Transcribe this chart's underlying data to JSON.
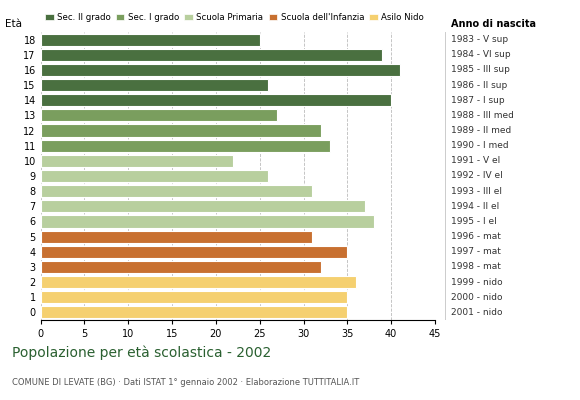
{
  "ages": [
    18,
    17,
    16,
    15,
    14,
    13,
    12,
    11,
    10,
    9,
    8,
    7,
    6,
    5,
    4,
    3,
    2,
    1,
    0
  ],
  "values": [
    25,
    39,
    41,
    26,
    40,
    27,
    32,
    33,
    22,
    26,
    31,
    37,
    38,
    31,
    35,
    32,
    36,
    35,
    35
  ],
  "anno_nascita": [
    "1983 - V sup",
    "1984 - VI sup",
    "1985 - III sup",
    "1986 - II sup",
    "1987 - I sup",
    "1988 - III med",
    "1989 - II med",
    "1990 - I med",
    "1991 - V el",
    "1992 - IV el",
    "1993 - III el",
    "1994 - II el",
    "1995 - I el",
    "1996 - mat",
    "1997 - mat",
    "1998 - mat",
    "1999 - nido",
    "2000 - nido",
    "2001 - nido"
  ],
  "categories": {
    "Sec. II grado": {
      "ages": [
        14,
        15,
        16,
        17,
        18
      ],
      "color": "#4a7040"
    },
    "Sec. I grado": {
      "ages": [
        11,
        12,
        13
      ],
      "color": "#7a9e5e"
    },
    "Scuola Primaria": {
      "ages": [
        6,
        7,
        8,
        9,
        10
      ],
      "color": "#b8cf9e"
    },
    "Scuola dell'Infanzia": {
      "ages": [
        3,
        4,
        5
      ],
      "color": "#c87030"
    },
    "Asilo Nido": {
      "ages": [
        0,
        1,
        2
      ],
      "color": "#f5d070"
    }
  },
  "title": "Popolazione per età scolastica - 2002",
  "subtitle": "COMUNE DI LEVATE (BG) · Dati ISTAT 1° gennaio 2002 · Elaborazione TUTTITALIA.IT",
  "xlabel_eta": "Età",
  "xlabel_anno": "Anno di nascita",
  "xlim": [
    0,
    45
  ],
  "xticks": [
    0,
    5,
    10,
    15,
    20,
    25,
    30,
    35,
    40,
    45
  ],
  "bar_height": 0.8,
  "bg_color": "#ffffff",
  "grid_color": "#bbbbbb",
  "title_color": "#2a6030",
  "subtitle_color": "#555555"
}
